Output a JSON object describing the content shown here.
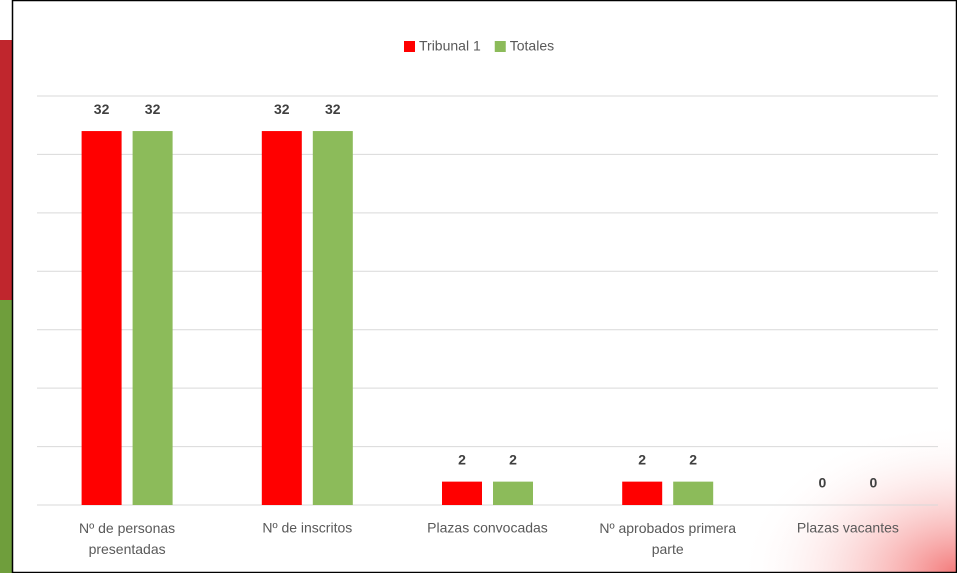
{
  "chart_data": {
    "type": "bar",
    "categories": [
      "Nº de personas presentadas",
      "Nº de inscritos",
      "Plazas convocadas",
      "Nº aprobados primera parte",
      "Plazas vacantes"
    ],
    "series": [
      {
        "name": "Tribunal 1",
        "color": "#ff0000",
        "values": [
          32,
          32,
          2,
          2,
          0
        ]
      },
      {
        "name": "Totales",
        "color": "#8cbb5a",
        "values": [
          32,
          32,
          2,
          2,
          0
        ]
      }
    ],
    "ylim": [
      0,
      35
    ],
    "yticks": [
      0,
      5,
      10,
      15,
      20,
      25,
      30,
      35
    ],
    "grid": true,
    "legend": "top"
  }
}
